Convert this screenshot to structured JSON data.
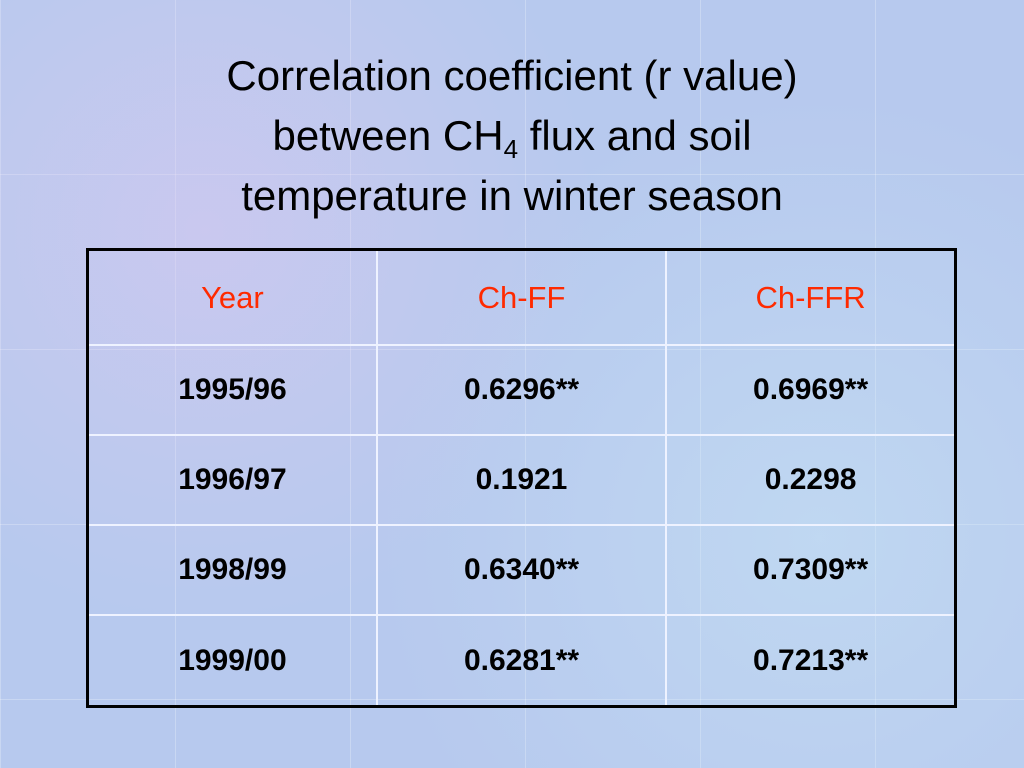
{
  "title": {
    "line1": "Correlation coefficient (r value)",
    "line2_start": "between CH",
    "line2_sub": "4",
    "line2_end": " flux and soil",
    "line3": "temperature in winter season"
  },
  "table": {
    "header": [
      "Year",
      "Ch-FF",
      "Ch-FFR"
    ],
    "rows": [
      [
        "1995/96",
        "0.6296**",
        "0.6969**"
      ],
      [
        "1996/97",
        "0.1921",
        "0.2298"
      ],
      [
        "1998/99",
        "0.6340**",
        "0.7309**"
      ],
      [
        "1999/00",
        "0.6281**",
        "0.7213**"
      ]
    ]
  }
}
